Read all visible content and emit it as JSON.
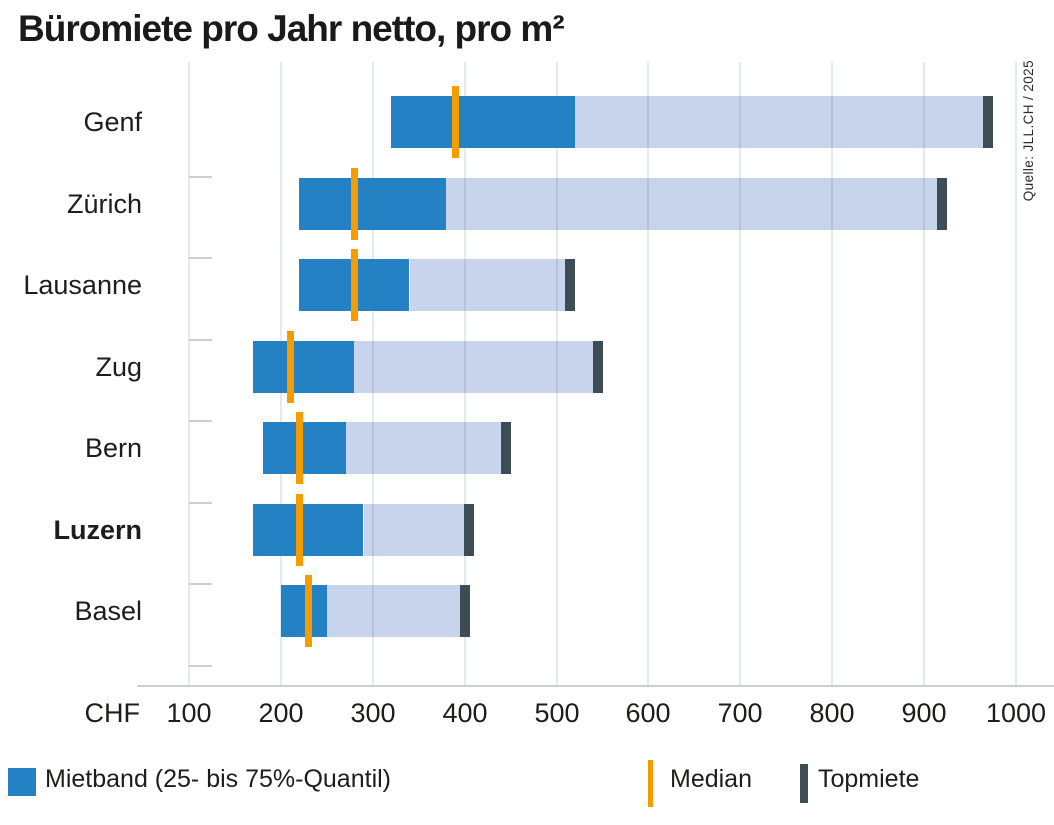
{
  "header": {
    "title": "Büromiete pro Jahr netto, pro m²"
  },
  "source": {
    "text": "Quelle: JLL.CH / 2025"
  },
  "axis": {
    "unit_label": "CHF"
  },
  "legend": {
    "band_label": "Mietband (25- bis 75%-Quantil)",
    "median_label": "Median",
    "top_label": "Topmiete"
  },
  "colors": {
    "band": "#2381c4",
    "band_light": "#c8d5ec",
    "median": "#f59c00",
    "topmiete": "#3d4d55",
    "gridline": "#e4e9ec",
    "axis_line": "#c8d0d6"
  },
  "chart_data": {
    "type": "bar",
    "orientation": "horizontal",
    "title": "Büromiete pro Jahr netto, pro m²",
    "xlabel": "CHF",
    "xlim": [
      100,
      1000
    ],
    "xticks": [
      100,
      200,
      300,
      400,
      500,
      600,
      700,
      800,
      900,
      1000
    ],
    "grid": "vertical",
    "legend_position": "bottom",
    "categories": [
      "Genf",
      "Zürich",
      "Lausanne",
      "Zug",
      "Bern",
      "Luzern",
      "Basel"
    ],
    "highlighted_category": "Luzern",
    "series": [
      {
        "name": "25%-Quantil",
        "values": [
          320,
          220,
          220,
          170,
          180,
          170,
          200
        ]
      },
      {
        "name": "Median",
        "values": [
          390,
          280,
          280,
          210,
          220,
          220,
          230
        ]
      },
      {
        "name": "75%-Quantil",
        "values": [
          520,
          380,
          340,
          280,
          270,
          290,
          250
        ]
      },
      {
        "name": "Topmiete",
        "values": [
          970,
          920,
          515,
          545,
          445,
          405,
          400
        ]
      }
    ]
  }
}
